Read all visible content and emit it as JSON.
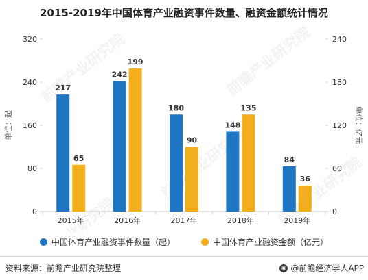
{
  "title": "2015-2019年中国体育产业融资事件数量、融资金额统计情况",
  "colors": {
    "series1": "#1f77c4",
    "series2": "#f3ae1e",
    "axis": "#cccccc",
    "grid": "#e6e6e6",
    "text": "#333333"
  },
  "chart_data": {
    "type": "bar",
    "title": "2015-2019年中国体育产业融资事件数量、融资金额统计情况",
    "categories": [
      "2015年",
      "2016年",
      "2017年",
      "2018年",
      "2019年"
    ],
    "series": [
      {
        "name": "中国体育产业融资事件数量（起）",
        "values": [
          217,
          242,
          180,
          148,
          84
        ],
        "axis": "left"
      },
      {
        "name": "中国体育产业融资金额（亿元）",
        "values": [
          65,
          199,
          90,
          135,
          36
        ],
        "axis": "right"
      }
    ],
    "y_left": {
      "label": "单位：起",
      "ylim": [
        0,
        320
      ],
      "ticks": [
        0,
        80,
        160,
        240,
        320
      ]
    },
    "y_right": {
      "label": "单位：亿元",
      "ylim": [
        0,
        240
      ],
      "ticks": [
        0,
        60,
        120,
        180,
        240
      ]
    },
    "legend_position": "bottom",
    "grid": false
  },
  "watermark": "前瞻产业研究院",
  "footer": {
    "source": "资料来源：前瞻产业研究院整理",
    "brand": "@前瞻经济学人APP"
  }
}
